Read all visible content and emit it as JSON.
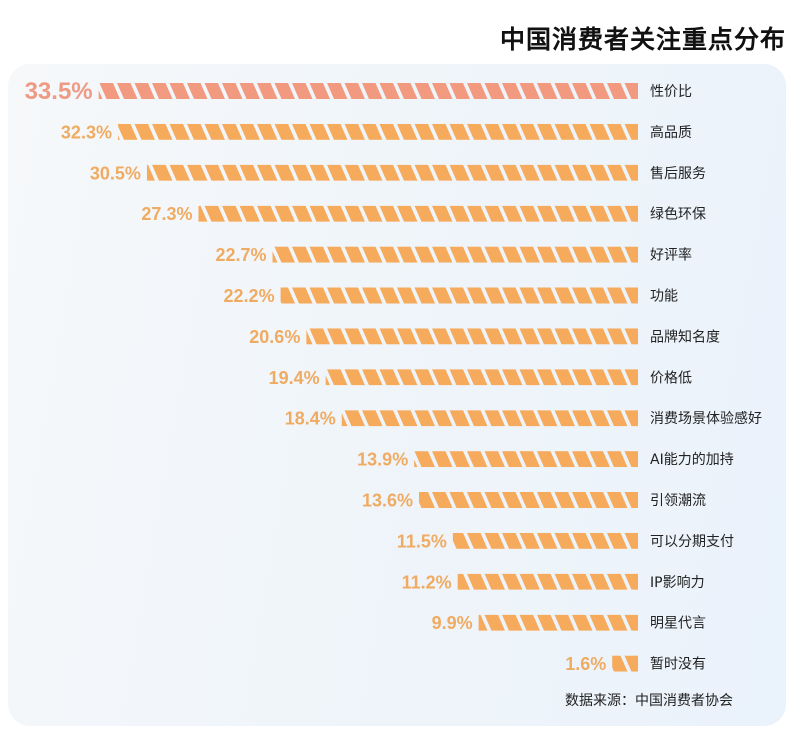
{
  "chart_data": {
    "type": "bar",
    "orientation": "horizontal",
    "title": "中国消费者关注重点分布",
    "categories": [
      "性价比",
      "高品质",
      "售后服务",
      "绿色环保",
      "好评率",
      "功能",
      "品牌知名度",
      "价格低",
      "消费场景体验感好",
      "AI能力的加持",
      "引领潮流",
      "可以分期支付",
      "IP影响力",
      "明星代言",
      "暂时没有"
    ],
    "values": [
      33.5,
      32.3,
      30.5,
      27.3,
      22.7,
      22.2,
      20.6,
      19.4,
      18.4,
      13.9,
      13.6,
      11.5,
      11.2,
      9.9,
      1.6
    ],
    "value_labels": [
      "33.5%",
      "32.3%",
      "30.5%",
      "27.3%",
      "22.7%",
      "22.2%",
      "20.6%",
      "19.4%",
      "18.4%",
      "13.9%",
      "13.6%",
      "11.5%",
      "11.2%",
      "9.9%",
      "1.6%"
    ],
    "unit": "%",
    "colors": {
      "highlight": "#f29a80",
      "bar": "#f5aa5c",
      "highlight_label": "#ee9a85",
      "label": "#f0ab62"
    },
    "source": "数据来源：中国消费者协会"
  }
}
